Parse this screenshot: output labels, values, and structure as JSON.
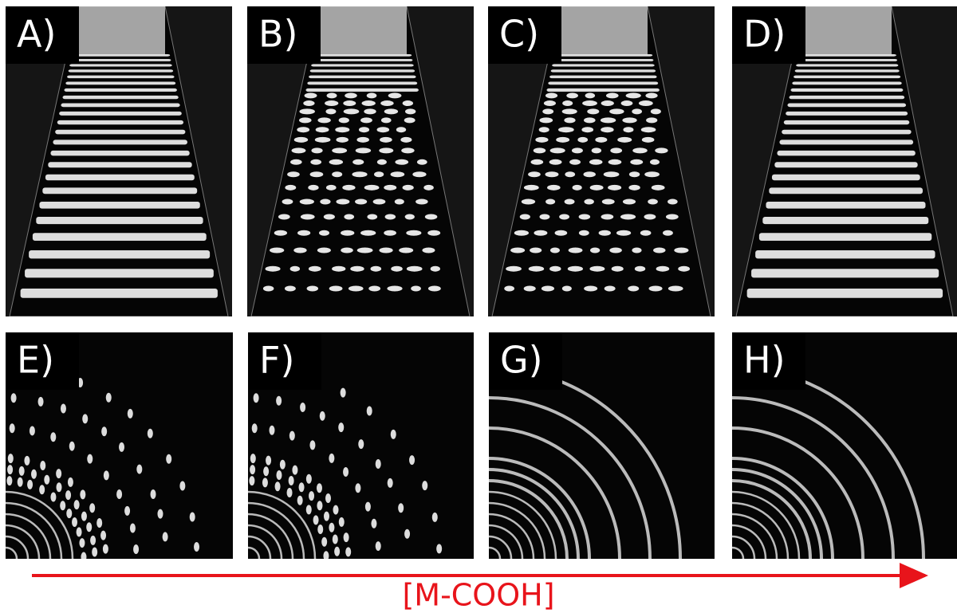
{
  "panels": [
    {
      "label": "A)"
    },
    {
      "label": "B)"
    },
    {
      "label": "C)"
    },
    {
      "label": "D)"
    },
    {
      "label": "E)"
    },
    {
      "label": "F)"
    },
    {
      "label": "G)"
    },
    {
      "label": "H)"
    }
  ],
  "axis_label": "[M-COOH]"
}
